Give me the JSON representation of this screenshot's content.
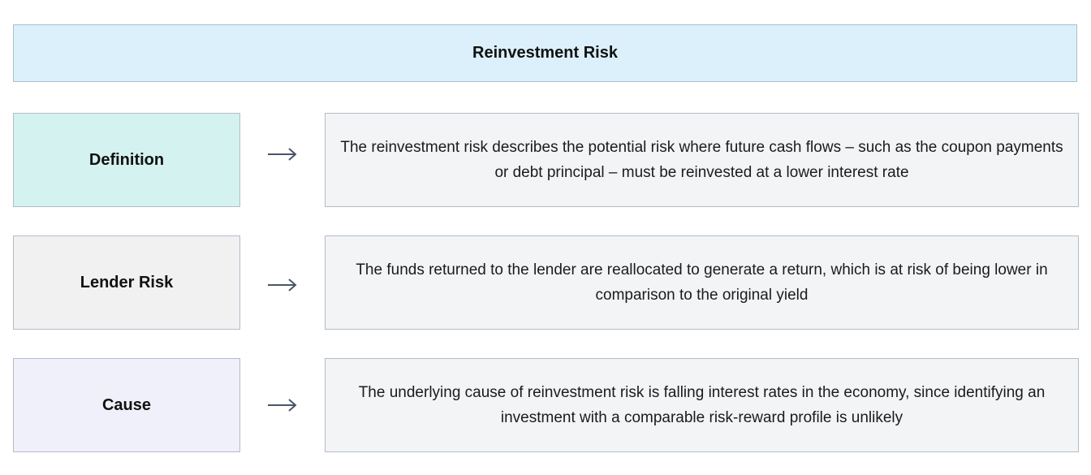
{
  "title": "Reinvestment Risk",
  "rows": [
    {
      "label": "Definition",
      "label_color": "#d4f2f0",
      "description": "The reinvestment risk describes the potential risk where future cash flows – such as the coupon payments or debt principal – must be reinvested at a lower interest rate"
    },
    {
      "label": "Lender Risk",
      "label_color": "#f1f1f2",
      "description": "The funds returned to the lender are reallocated to generate a return, which is at risk of being lower in comparison to the original yield"
    },
    {
      "label": "Cause",
      "label_color": "#f0f0fa",
      "description": "The underlying cause of reinvestment risk is falling interest rates in the economy, since identifying an investment with a comparable risk-reward profile is unlikely"
    }
  ],
  "arrow_icon": "right-arrow-icon",
  "colors": {
    "title_bg": "#dbf0fa",
    "desc_bg": "#f2f4f6",
    "arrow": "#4a5568"
  }
}
